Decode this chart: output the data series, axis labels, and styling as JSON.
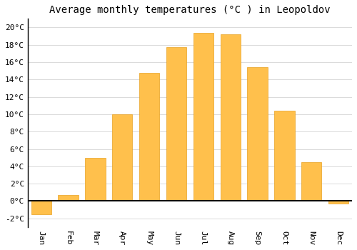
{
  "months": [
    "Jan",
    "Feb",
    "Mar",
    "Apr",
    "May",
    "Jun",
    "Jul",
    "Aug",
    "Sep",
    "Oct",
    "Nov",
    "Dec"
  ],
  "values": [
    -1.5,
    0.7,
    5.0,
    10.0,
    14.8,
    17.7,
    19.4,
    19.2,
    15.4,
    10.4,
    4.5,
    -0.3
  ],
  "bar_color": "#FFC04C",
  "bar_edge_color": "#E8A020",
  "title": "Average monthly temperatures (°C ) in Leopoldov",
  "ylim": [
    -3,
    21
  ],
  "yticks": [
    -2,
    0,
    2,
    4,
    6,
    8,
    10,
    12,
    14,
    16,
    18,
    20
  ],
  "background_color": "#FFFFFF",
  "grid_color": "#CCCCCC",
  "title_fontsize": 10,
  "tick_fontsize": 8,
  "zero_line_color": "#000000"
}
